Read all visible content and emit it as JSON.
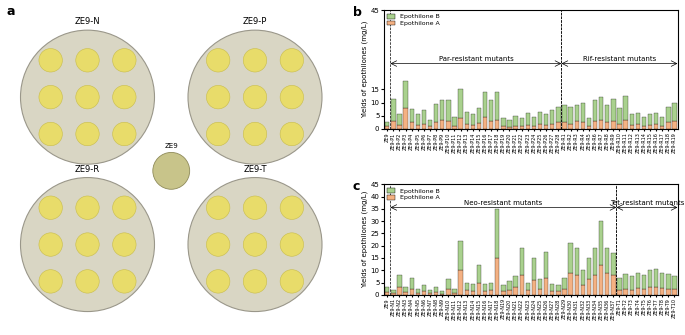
{
  "image_panel": {
    "title": "a",
    "plates": [
      "ZE9-N",
      "ZE9-P",
      "ZE9-R",
      "ZE9-T"
    ],
    "center_plate": "ZE9"
  },
  "chart_data": [
    {
      "type": "bar",
      "title": "b",
      "stacked": true,
      "legend": "upper left",
      "y_label": "Yields of epothilones (mg/L)",
      "categories": [
        "ZE9",
        "ZE9-P1",
        "ZE9-P2",
        "ZE9-P3",
        "ZE9-P4",
        "ZE9-P5",
        "ZE9-P6",
        "ZE9-P7",
        "ZE9-P8",
        "ZE9-P9",
        "ZE9-P10",
        "ZE9-P11",
        "ZE9-P12",
        "ZE9-P13",
        "ZE9-P14",
        "ZE9-P15",
        "ZE9-P16",
        "ZE9-P17",
        "ZE9-P18",
        "ZE9-P19",
        "ZE9-P20",
        "ZE9-P21",
        "ZE9-P22",
        "ZE9-P23",
        "ZE9-P24",
        "ZE9-P25",
        "ZE9-P26",
        "ZE9-P27",
        "ZE9-P28",
        "ZE9-R1",
        "ZE9-R2",
        "ZE9-R3",
        "ZE9-R4",
        "ZE9-R5",
        "ZE9-R6",
        "ZE9-R7",
        "ZE9-R8",
        "ZE9-R9",
        "ZE9-R10",
        "ZE9-R11",
        "ZE9-R12",
        "ZE9-R13",
        "ZE9-R14",
        "ZE9-R15",
        "ZE9-R16",
        "ZE9-R17",
        "ZE9-R18",
        "ZE9-R19"
      ],
      "series": [
        {
          "name": "Epothilone A",
          "color": "#f4b183",
          "values": [
            1.0,
            3.0,
            1.5,
            8.0,
            2.5,
            1.5,
            2.0,
            1.0,
            2.5,
            3.5,
            3.0,
            1.2,
            4.0,
            1.8,
            1.5,
            2.2,
            4.5,
            3.0,
            3.5,
            1.0,
            0.8,
            1.2,
            1.0,
            1.5,
            1.2,
            1.8,
            1.5,
            2.0,
            2.5,
            2.5,
            2.0,
            3.0,
            2.5,
            1.2,
            3.0,
            3.5,
            2.5,
            3.0,
            2.0,
            3.5,
            1.5,
            1.8,
            1.2,
            1.5,
            1.8,
            1.2,
            2.5,
            3.0
          ]
        },
        {
          "name": "Epothilone B",
          "color": "#a9d18e",
          "values": [
            1.8,
            8.5,
            4.0,
            10.0,
            5.0,
            4.0,
            5.0,
            2.5,
            7.0,
            7.5,
            8.0,
            3.3,
            11.0,
            4.7,
            4.0,
            5.8,
            9.5,
            8.0,
            10.5,
            3.0,
            2.7,
            3.8,
            3.0,
            4.5,
            3.3,
            4.7,
            4.0,
            5.0,
            6.0,
            6.5,
            6.5,
            6.0,
            7.5,
            2.8,
            8.0,
            8.5,
            6.5,
            8.5,
            6.0,
            9.0,
            4.0,
            4.2,
            3.3,
            4.0,
            4.2,
            3.3,
            6.0,
            7.0
          ]
        }
      ],
      "ylim": [
        0,
        45
      ],
      "yticks": [
        0,
        5,
        10,
        15,
        45
      ],
      "annotations": [
        {
          "text": "Par-resistant mutants",
          "from": "ZE9-P1",
          "to": "ZE9-P28"
        },
        {
          "text": "Rif-resistant mutants",
          "from": "ZE9-R1",
          "to": "ZE9-R19"
        }
      ]
    },
    {
      "type": "bar",
      "title": "c",
      "stacked": true,
      "legend": "upper left",
      "y_label": "Yields of epothilones (mg/L)",
      "categories": [
        "ZE9",
        "ZE9-N1",
        "ZE9-N2",
        "ZE9-N3",
        "ZE9-N4",
        "ZE9-N5",
        "ZE9-N6",
        "ZE9-N7",
        "ZE9-N8",
        "ZE9-N9",
        "ZE9-N10",
        "ZE9-N11",
        "ZE9-N12",
        "ZE9-N13",
        "ZE9-N14",
        "ZE9-N15",
        "ZE9-N16",
        "ZE9-N17",
        "ZE9-N18",
        "ZE9-N19",
        "ZE9-N20",
        "ZE9-N21",
        "ZE9-N22",
        "ZE9-N23",
        "ZE9-N24",
        "ZE9-N25",
        "ZE9-N26",
        "ZE9-N27",
        "ZE9-N28",
        "ZE9-N29",
        "ZE9-N30",
        "ZE9-N31",
        "ZE9-N32",
        "ZE9-N33",
        "ZE9-N34",
        "ZE9-N35",
        "ZE9-N36",
        "ZE9-N37",
        "ZE9-T1",
        "ZE9-T2",
        "ZE9-T3",
        "ZE9-T4",
        "ZE9-T5",
        "ZE9-T6",
        "ZE9-T7",
        "ZE9-T8",
        "ZE9-T9",
        "ZE9-T10"
      ],
      "series": [
        {
          "name": "Epothilone A",
          "color": "#f4b183",
          "values": [
            1.0,
            0.8,
            3.0,
            1.0,
            2.5,
            0.8,
            1.5,
            0.7,
            1.0,
            0.5,
            2.5,
            0.8,
            10.0,
            1.8,
            1.5,
            5.0,
            1.5,
            2.0,
            15.0,
            1.5,
            2.0,
            3.0,
            8.0,
            2.0,
            6.0,
            2.5,
            7.0,
            1.5,
            1.5,
            2.5,
            9.0,
            8.0,
            4.0,
            6.5,
            8.0,
            12.0,
            9.0,
            8.0,
            2.0,
            2.5,
            2.0,
            2.8,
            2.5,
            3.0,
            3.2,
            2.8,
            2.5,
            2.2
          ]
        },
        {
          "name": "Epothilone B",
          "color": "#a9d18e",
          "values": [
            2.0,
            1.2,
            5.0,
            2.0,
            4.5,
            1.7,
            2.5,
            1.3,
            2.0,
            1.0,
            4.0,
            1.7,
            12.0,
            3.2,
            3.0,
            7.0,
            3.0,
            3.0,
            20.0,
            2.5,
            3.5,
            4.5,
            11.0,
            3.0,
            9.0,
            4.0,
            10.5,
            3.0,
            2.5,
            4.5,
            12.0,
            11.0,
            6.0,
            8.5,
            11.0,
            18.0,
            10.0,
            9.0,
            5.0,
            6.0,
            5.5,
            6.2,
            5.5,
            7.0,
            7.3,
            6.2,
            6.0,
            5.3
          ]
        }
      ],
      "ylim": [
        0,
        45
      ],
      "yticks": [
        0,
        5,
        10,
        15,
        20,
        25,
        30,
        35,
        40,
        45
      ],
      "annotations": [
        {
          "text": "Neo-resistant mutants",
          "from": "ZE9-N1",
          "to": "ZE9-N37"
        },
        {
          "text": "Tet-resistant mutants",
          "from": "ZE9-T1",
          "to": "ZE9-T10"
        }
      ]
    }
  ]
}
